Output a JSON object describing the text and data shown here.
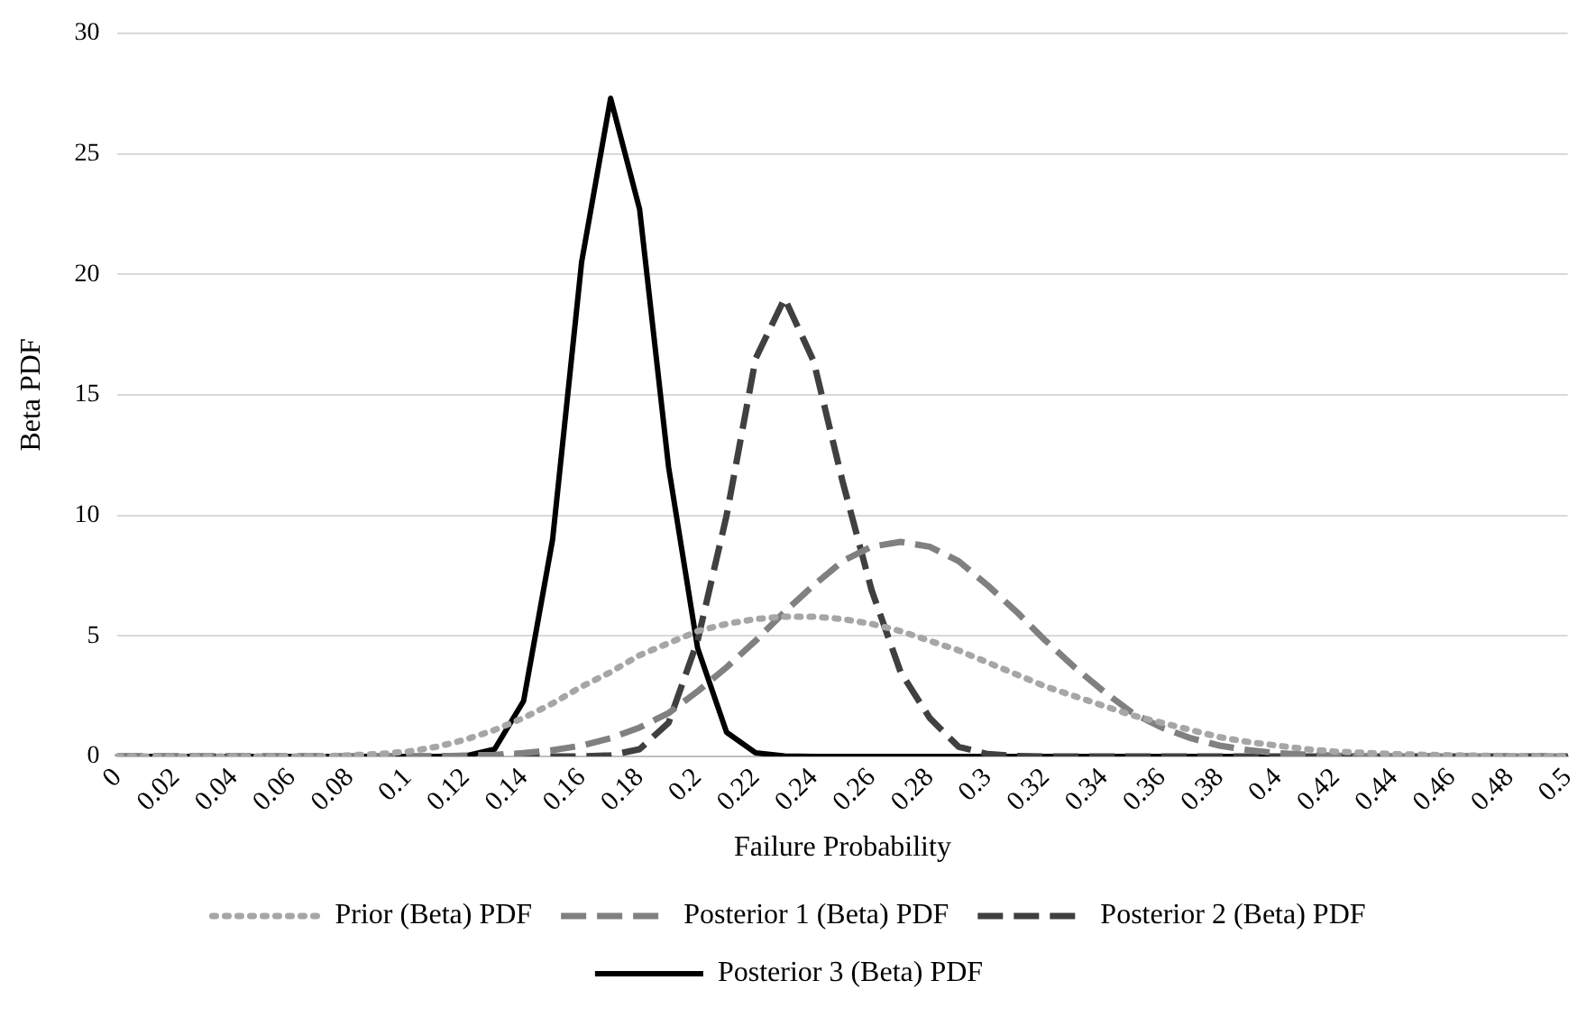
{
  "chart_data": {
    "type": "line",
    "xlabel": "Failure Probability",
    "ylabel": "Beta PDF",
    "categories": [
      "0",
      null,
      "0.02",
      null,
      "0.04",
      null,
      "0.06",
      null,
      "0.08",
      null,
      "0.1",
      null,
      "0.12",
      null,
      "0.14",
      null,
      "0.16",
      null,
      "0.18",
      null,
      "0.2",
      null,
      "0.22",
      null,
      "0.24",
      null,
      "0.26",
      null,
      "0.28",
      null,
      "0.3",
      null,
      "0.32",
      null,
      "0.34",
      null,
      "0.36",
      null,
      "0.38",
      null,
      "0.4",
      null,
      "0.42",
      null,
      "0.44",
      null,
      "0.46",
      null,
      "0.48",
      null,
      "0.5"
    ],
    "series": [
      {
        "name": "Prior (Beta) PDF",
        "color": "#a6a6a6",
        "line_style": "dotted",
        "values": [
          0,
          0,
          0,
          0,
          0,
          0,
          0,
          0,
          0.05,
          0.1,
          0.2,
          0.4,
          0.7,
          1.1,
          1.6,
          2.2,
          2.9,
          3.5,
          4.2,
          4.7,
          5.2,
          5.5,
          5.7,
          5.8,
          5.8,
          5.7,
          5.5,
          5.2,
          4.8,
          4.4,
          3.9,
          3.4,
          2.9,
          2.5,
          2.1,
          1.7,
          1.4,
          1.1,
          0.8,
          0.6,
          0.45,
          0.3,
          0.2,
          0.15,
          0.1,
          0.07,
          0.05,
          0.03,
          0.02,
          0.01,
          0
        ]
      },
      {
        "name": "Posterior 1 (Beta) PDF",
        "color": "#808080",
        "line_style": "dashed",
        "values": [
          0,
          0,
          0,
          0,
          0,
          0,
          0,
          0,
          0,
          0,
          0,
          0,
          0.04,
          0.07,
          0.14,
          0.26,
          0.45,
          0.76,
          1.2,
          1.8,
          2.7,
          3.7,
          4.8,
          6,
          7.1,
          8.1,
          8.7,
          8.9,
          8.7,
          8.1,
          7.1,
          6,
          4.8,
          3.7,
          2.7,
          1.8,
          1.2,
          0.76,
          0.45,
          0.26,
          0.14,
          0.07,
          0.04,
          0,
          0,
          0,
          0,
          0,
          0,
          0,
          0
        ]
      },
      {
        "name": "Posterior 2 (Beta) PDF",
        "color": "#404040",
        "line_style": "dashed",
        "values": [
          0,
          0,
          0,
          0,
          0,
          0,
          0,
          0,
          0,
          0,
          0,
          0,
          0,
          0,
          0,
          0,
          0,
          0.05,
          0.3,
          1.4,
          4.8,
          10,
          16.5,
          19,
          16.4,
          11.4,
          6.9,
          3.5,
          1.6,
          0.4,
          0.1,
          0.02,
          0,
          0,
          0,
          0,
          0,
          0,
          0,
          0,
          0,
          0,
          0,
          0,
          0,
          0,
          0,
          0,
          0,
          0,
          0
        ]
      },
      {
        "name": "Posterior 3 (Beta) PDF",
        "color": "#000000",
        "line_style": "solid",
        "values": [
          0,
          0,
          0,
          0,
          0,
          0,
          0,
          0,
          0,
          0,
          0,
          0,
          0.02,
          0.3,
          2.3,
          9,
          20.5,
          27.3,
          22.7,
          12,
          4.5,
          1,
          0.15,
          0.02,
          0,
          0,
          0,
          0,
          0,
          0,
          0,
          0,
          0,
          0,
          0,
          0,
          0,
          0,
          0,
          0,
          0,
          0,
          0,
          0,
          0,
          0,
          0,
          0,
          0,
          0,
          0
        ]
      }
    ],
    "ylim": [
      0,
      30
    ],
    "yticks": [
      0,
      5,
      10,
      15,
      20,
      25,
      30
    ],
    "grid": "y",
    "legend": "bottom",
    "marker": "none"
  }
}
